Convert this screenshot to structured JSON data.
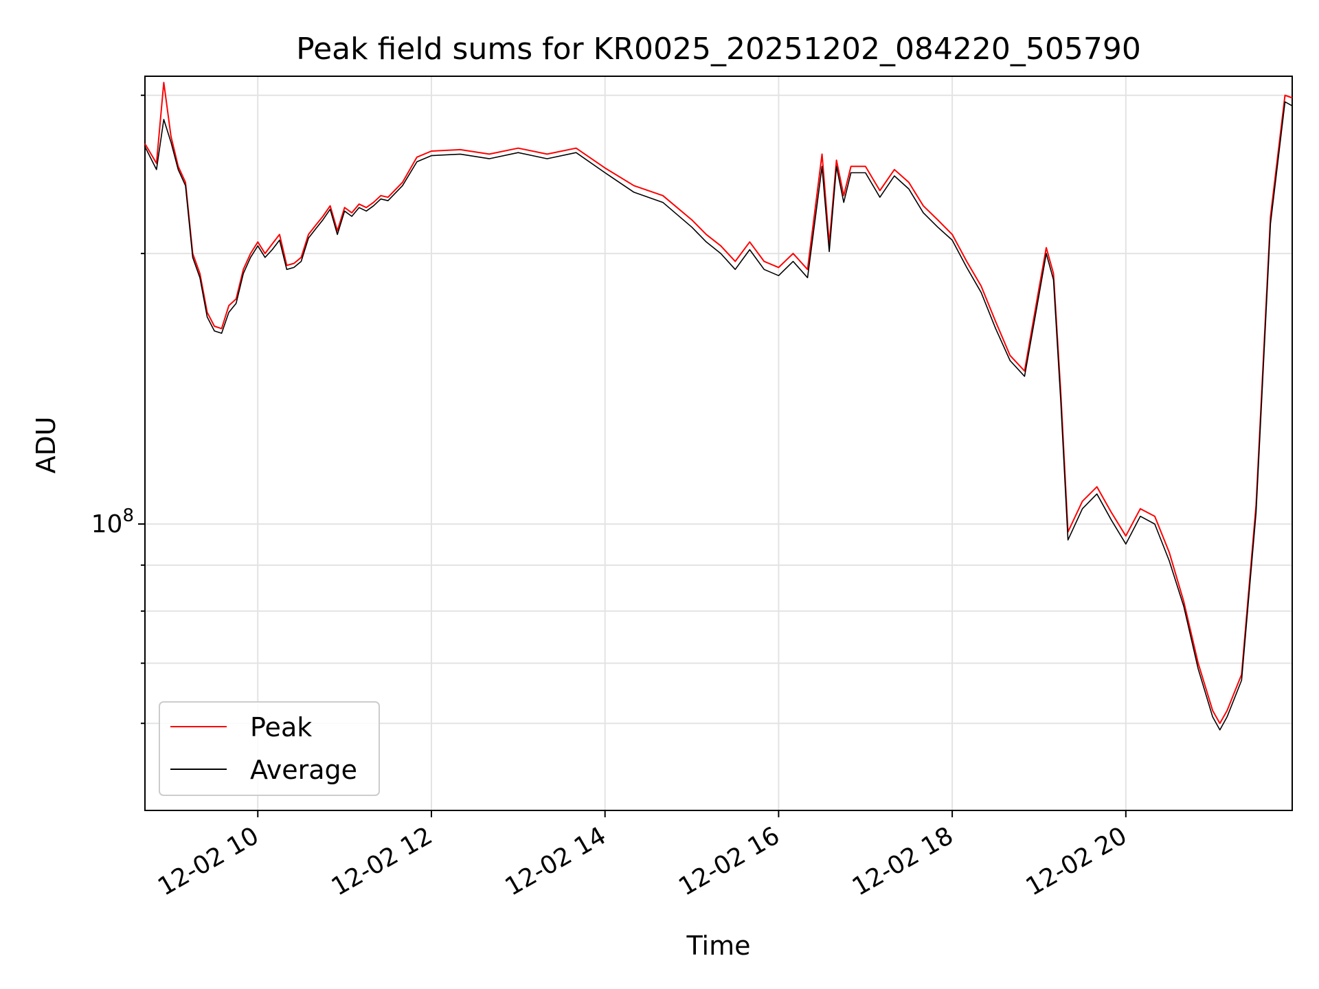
{
  "chart_data": {
    "type": "line",
    "title": "Peak field sums for KR0025_20251202_084220_505790",
    "xlabel": "Time",
    "ylabel": "ADU",
    "x_axis": {
      "type": "time",
      "range": [
        "2025-12-02 08:42",
        "2025-12-02 21:55"
      ],
      "tick_labels": [
        "12-02 10",
        "12-02 12",
        "12-02 14",
        "12-02 16",
        "12-02 18",
        "12-02 20"
      ]
    },
    "y_axis": {
      "scale": "log",
      "range": [
        48000000,
        315000000
      ],
      "major_tick_label": "10^8",
      "major_tick_value": 100000000,
      "minor_tick_values": [
        60000000,
        70000000,
        80000000,
        90000000,
        200000000,
        300000000
      ]
    },
    "grid": true,
    "legend_position": "lower-left",
    "x": [
      "08:42",
      "08:50",
      "08:55",
      "09:00",
      "09:05",
      "09:10",
      "09:15",
      "09:20",
      "09:25",
      "09:30",
      "09:35",
      "09:40",
      "09:45",
      "09:50",
      "09:55",
      "10:00",
      "10:05",
      "10:10",
      "10:15",
      "10:20",
      "10:25",
      "10:30",
      "10:35",
      "10:40",
      "10:45",
      "10:50",
      "10:55",
      "11:00",
      "11:05",
      "11:10",
      "11:15",
      "11:20",
      "11:25",
      "11:30",
      "11:40",
      "11:50",
      "12:00",
      "12:20",
      "12:40",
      "13:00",
      "13:20",
      "13:40",
      "14:00",
      "14:20",
      "14:40",
      "15:00",
      "15:10",
      "15:20",
      "15:30",
      "15:40",
      "15:50",
      "16:00",
      "16:10",
      "16:20",
      "16:30",
      "16:35",
      "16:40",
      "16:45",
      "16:50",
      "17:00",
      "17:10",
      "17:20",
      "17:30",
      "17:40",
      "17:50",
      "18:00",
      "18:10",
      "18:20",
      "18:30",
      "18:40",
      "18:50",
      "19:00",
      "19:05",
      "19:10",
      "19:15",
      "19:20",
      "19:30",
      "19:40",
      "19:50",
      "20:00",
      "20:10",
      "20:20",
      "20:30",
      "20:40",
      "20:50",
      "21:00",
      "21:05",
      "21:10",
      "21:20",
      "21:30",
      "21:40",
      "21:50",
      "21:55"
    ],
    "series": [
      {
        "name": "Peak",
        "color": "#ff0000",
        "values": [
          265000000,
          252000000,
          310000000,
          270000000,
          250000000,
          240000000,
          200000000,
          190000000,
          172000000,
          166000000,
          165000000,
          175000000,
          178000000,
          192000000,
          200000000,
          206000000,
          200000000,
          205000000,
          210000000,
          194000000,
          195000000,
          198000000,
          210000000,
          215000000,
          220000000,
          226000000,
          212000000,
          225000000,
          222000000,
          227000000,
          225000000,
          228000000,
          232000000,
          231000000,
          240000000,
          256000000,
          260000000,
          261000000,
          258000000,
          262000000,
          258000000,
          262000000,
          249000000,
          238000000,
          232000000,
          218000000,
          210000000,
          204000000,
          196000000,
          206000000,
          196000000,
          193000000,
          200000000,
          192000000,
          258000000,
          205000000,
          254000000,
          232000000,
          250000000,
          250000000,
          235000000,
          248000000,
          240000000,
          226000000,
          218000000,
          210000000,
          196000000,
          184000000,
          168000000,
          154000000,
          148000000,
          183000000,
          203000000,
          190000000,
          140000000,
          98000000,
          106000000,
          110000000,
          103000000,
          97000000,
          104000000,
          102000000,
          93000000,
          82000000,
          70000000,
          62000000,
          60000000,
          62000000,
          68000000,
          105000000,
          220000000,
          300000000,
          298000000
        ]
      },
      {
        "name": "Average",
        "color": "#000000",
        "values": [
          263000000,
          248000000,
          282000000,
          266000000,
          248000000,
          238000000,
          198000000,
          188000000,
          170000000,
          164000000,
          163000000,
          172000000,
          176000000,
          190000000,
          198000000,
          204000000,
          198000000,
          202000000,
          207000000,
          192000000,
          193000000,
          196000000,
          208000000,
          213000000,
          218000000,
          224000000,
          210000000,
          223000000,
          220000000,
          225000000,
          223000000,
          226000000,
          230000000,
          229000000,
          238000000,
          253000000,
          257000000,
          258000000,
          255000000,
          259000000,
          255000000,
          259000000,
          246000000,
          234000000,
          228000000,
          214000000,
          206000000,
          200000000,
          192000000,
          202000000,
          192000000,
          189000000,
          196000000,
          188000000,
          250000000,
          201000000,
          250000000,
          228000000,
          246000000,
          246000000,
          231000000,
          244000000,
          236000000,
          222000000,
          214000000,
          207000000,
          193000000,
          181000000,
          165000000,
          152000000,
          146000000,
          180000000,
          200000000,
          187000000,
          137000000,
          96000000,
          104000000,
          108000000,
          101000000,
          95000000,
          102000000,
          100000000,
          91000000,
          81000000,
          69000000,
          61000000,
          59000000,
          61000000,
          67000000,
          103000000,
          216000000,
          295000000,
          292000000
        ]
      }
    ]
  }
}
